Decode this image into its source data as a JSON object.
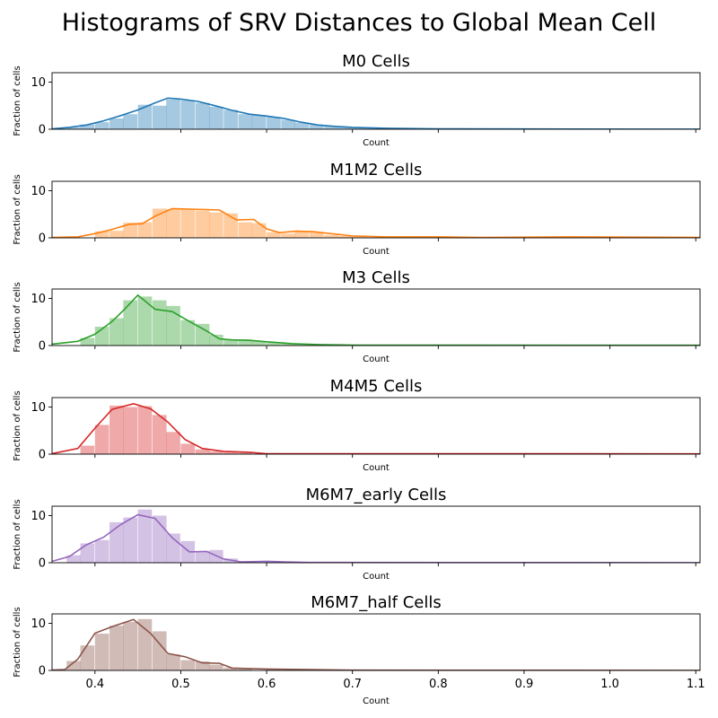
{
  "title": "Histograms of SRV Distances to Global Mean Cell",
  "chart_data": [
    {
      "type": "histogram",
      "title": "M0 Cells",
      "xlabel": "Count",
      "ylabel": "Fraction of cells",
      "color": "#1f77b4",
      "xlim": [
        0.35,
        1.105
      ],
      "ylim": [
        0,
        12
      ],
      "yticks": [
        0,
        10
      ],
      "bin_width": 0.0167,
      "bins": [
        [
          0.35,
          0.2
        ],
        [
          0.367,
          0.4
        ],
        [
          0.383,
          1.0
        ],
        [
          0.4,
          1.5
        ],
        [
          0.417,
          2.3
        ],
        [
          0.433,
          3.2
        ],
        [
          0.45,
          5.2
        ],
        [
          0.467,
          5.0
        ],
        [
          0.483,
          6.3
        ],
        [
          0.5,
          6.1
        ],
        [
          0.517,
          5.6
        ],
        [
          0.533,
          4.8
        ],
        [
          0.55,
          4.1
        ],
        [
          0.567,
          3.2
        ],
        [
          0.583,
          3.0
        ],
        [
          0.6,
          2.6
        ],
        [
          0.617,
          2.0
        ],
        [
          0.633,
          1.4
        ],
        [
          0.65,
          1.0
        ],
        [
          0.667,
          0.6
        ],
        [
          0.683,
          0.4
        ],
        [
          0.7,
          0.3
        ],
        [
          0.717,
          0.2
        ],
        [
          0.733,
          0.2
        ],
        [
          0.75,
          0.1
        ],
        [
          0.767,
          0.1
        ],
        [
          0.783,
          0.1
        ]
      ],
      "kde": [
        [
          0.35,
          0.1
        ],
        [
          0.37,
          0.4
        ],
        [
          0.39,
          0.9
        ],
        [
          0.41,
          1.8
        ],
        [
          0.43,
          2.9
        ],
        [
          0.45,
          4.1
        ],
        [
          0.47,
          5.6
        ],
        [
          0.485,
          6.6
        ],
        [
          0.5,
          6.4
        ],
        [
          0.52,
          5.9
        ],
        [
          0.54,
          5.0
        ],
        [
          0.56,
          4.0
        ],
        [
          0.58,
          3.2
        ],
        [
          0.6,
          2.8
        ],
        [
          0.62,
          2.3
        ],
        [
          0.64,
          1.5
        ],
        [
          0.66,
          0.9
        ],
        [
          0.68,
          0.6
        ],
        [
          0.7,
          0.4
        ],
        [
          0.74,
          0.2
        ],
        [
          0.8,
          0.1
        ],
        [
          0.9,
          0.05
        ],
        [
          1.105,
          0.02
        ]
      ]
    },
    {
      "type": "histogram",
      "title": "M1M2 Cells",
      "xlabel": "Count",
      "ylabel": "Fraction of cells",
      "color": "#ff7f0e",
      "xlim": [
        0.35,
        1.105
      ],
      "ylim": [
        0,
        12
      ],
      "yticks": [
        0,
        10
      ],
      "bin_width": 0.0167,
      "bins": [
        [
          0.4,
          1.4
        ],
        [
          0.417,
          1.5
        ],
        [
          0.433,
          3.2
        ],
        [
          0.45,
          3.3
        ],
        [
          0.467,
          6.2
        ],
        [
          0.483,
          6.1
        ],
        [
          0.5,
          6.0
        ],
        [
          0.517,
          5.8
        ],
        [
          0.533,
          5.4
        ],
        [
          0.55,
          5.2
        ],
        [
          0.567,
          3.3
        ],
        [
          0.583,
          3.1
        ],
        [
          0.6,
          1.2
        ],
        [
          0.617,
          0.9
        ],
        [
          0.633,
          1.3
        ],
        [
          0.65,
          1.2
        ],
        [
          0.667,
          0.6
        ],
        [
          0.683,
          0.4
        ],
        [
          0.7,
          0.2
        ],
        [
          0.75,
          0.2
        ],
        [
          0.8,
          0.2
        ],
        [
          0.9,
          0.1
        ]
      ],
      "kde": [
        [
          0.35,
          0.1
        ],
        [
          0.38,
          0.2
        ],
        [
          0.4,
          0.9
        ],
        [
          0.42,
          1.8
        ],
        [
          0.44,
          2.9
        ],
        [
          0.455,
          3.0
        ],
        [
          0.47,
          4.6
        ],
        [
          0.49,
          6.2
        ],
        [
          0.51,
          6.1
        ],
        [
          0.53,
          6.0
        ],
        [
          0.545,
          5.9
        ],
        [
          0.565,
          3.8
        ],
        [
          0.585,
          3.9
        ],
        [
          0.6,
          1.9
        ],
        [
          0.615,
          1.1
        ],
        [
          0.635,
          1.4
        ],
        [
          0.655,
          1.3
        ],
        [
          0.675,
          0.9
        ],
        [
          0.7,
          0.4
        ],
        [
          0.74,
          0.2
        ],
        [
          0.8,
          0.2
        ],
        [
          0.85,
          0.1
        ],
        [
          0.95,
          0.2
        ],
        [
          1.105,
          0.1
        ]
      ]
    },
    {
      "type": "histogram",
      "title": "M3 Cells",
      "xlabel": "Count",
      "ylabel": "Fraction of cells",
      "color": "#2ca02c",
      "xlim": [
        0.35,
        1.105
      ],
      "ylim": [
        0,
        12
      ],
      "yticks": [
        0,
        10
      ],
      "bin_width": 0.0167,
      "bins": [
        [
          0.383,
          1.6
        ],
        [
          0.4,
          4.0
        ],
        [
          0.417,
          5.8
        ],
        [
          0.433,
          9.6
        ],
        [
          0.45,
          10.4
        ],
        [
          0.467,
          9.6
        ],
        [
          0.483,
          8.4
        ],
        [
          0.5,
          5.4
        ],
        [
          0.517,
          4.6
        ],
        [
          0.533,
          2.3
        ],
        [
          0.55,
          1.3
        ],
        [
          0.567,
          1.3
        ],
        [
          0.583,
          0.9
        ],
        [
          0.6,
          0.6
        ],
        [
          0.617,
          0.5
        ],
        [
          0.633,
          0.3
        ],
        [
          0.65,
          0.2
        ],
        [
          0.7,
          0.2
        ]
      ],
      "kde": [
        [
          0.35,
          0.3
        ],
        [
          0.38,
          0.9
        ],
        [
          0.4,
          2.4
        ],
        [
          0.42,
          5.1
        ],
        [
          0.435,
          7.8
        ],
        [
          0.45,
          10.7
        ],
        [
          0.47,
          7.7
        ],
        [
          0.49,
          7.2
        ],
        [
          0.51,
          5.1
        ],
        [
          0.53,
          3.1
        ],
        [
          0.545,
          1.4
        ],
        [
          0.56,
          1.2
        ],
        [
          0.58,
          1.1
        ],
        [
          0.6,
          0.8
        ],
        [
          0.63,
          0.4
        ],
        [
          0.66,
          0.2
        ],
        [
          0.7,
          0.1
        ],
        [
          1.105,
          0.05
        ]
      ]
    },
    {
      "type": "histogram",
      "title": "M4M5 Cells",
      "xlabel": "Count",
      "ylabel": "Fraction of cells",
      "color": "#d62728",
      "xlim": [
        0.35,
        1.105
      ],
      "ylim": [
        0,
        12
      ],
      "yticks": [
        0,
        10
      ],
      "bin_width": 0.0167,
      "bins": [
        [
          0.383,
          1.8
        ],
        [
          0.4,
          6.2
        ],
        [
          0.417,
          10.3
        ],
        [
          0.433,
          10.0
        ],
        [
          0.45,
          10.2
        ],
        [
          0.467,
          8.3
        ],
        [
          0.483,
          4.7
        ],
        [
          0.5,
          2.2
        ],
        [
          0.517,
          1.0
        ],
        [
          0.533,
          0.6
        ],
        [
          0.55,
          0.5
        ],
        [
          0.567,
          0.3
        ],
        [
          0.6,
          0.2
        ],
        [
          0.65,
          0.1
        ],
        [
          0.8,
          0.1
        ]
      ],
      "kde": [
        [
          0.35,
          0.1
        ],
        [
          0.38,
          1.2
        ],
        [
          0.4,
          5.5
        ],
        [
          0.42,
          9.5
        ],
        [
          0.445,
          10.7
        ],
        [
          0.465,
          9.6
        ],
        [
          0.485,
          6.8
        ],
        [
          0.505,
          3.1
        ],
        [
          0.525,
          1.2
        ],
        [
          0.55,
          0.6
        ],
        [
          0.58,
          0.4
        ],
        [
          0.6,
          0.1
        ],
        [
          0.65,
          0.1
        ],
        [
          0.8,
          0.1
        ],
        [
          1.105,
          0.05
        ]
      ]
    },
    {
      "type": "histogram",
      "title": "M6M7_early Cells",
      "xlabel": "Count",
      "ylabel": "Fraction of cells",
      "color": "#9467bd",
      "xlim": [
        0.35,
        1.105
      ],
      "ylim": [
        0,
        12
      ],
      "yticks": [
        0,
        10
      ],
      "bin_width": 0.0167,
      "bins": [
        [
          0.367,
          1.6
        ],
        [
          0.383,
          4.1
        ],
        [
          0.4,
          4.8
        ],
        [
          0.417,
          8.6
        ],
        [
          0.433,
          9.6
        ],
        [
          0.45,
          11.3
        ],
        [
          0.467,
          10.0
        ],
        [
          0.483,
          6.2
        ],
        [
          0.5,
          4.6
        ],
        [
          0.517,
          2.5
        ],
        [
          0.533,
          2.7
        ],
        [
          0.55,
          0.9
        ],
        [
          0.567,
          0.3
        ],
        [
          0.6,
          0.4
        ]
      ],
      "kde": [
        [
          0.35,
          0.3
        ],
        [
          0.37,
          1.3
        ],
        [
          0.39,
          3.8
        ],
        [
          0.41,
          5.4
        ],
        [
          0.43,
          8.1
        ],
        [
          0.45,
          10.2
        ],
        [
          0.47,
          9.4
        ],
        [
          0.49,
          5.3
        ],
        [
          0.51,
          2.3
        ],
        [
          0.53,
          2.4
        ],
        [
          0.55,
          0.8
        ],
        [
          0.57,
          0.2
        ],
        [
          0.6,
          0.3
        ],
        [
          0.62,
          0.2
        ],
        [
          0.65,
          0.05
        ],
        [
          1.105,
          0.02
        ]
      ]
    },
    {
      "type": "histogram",
      "title": "M6M7_half Cells",
      "xlabel": "Count",
      "ylabel": "Fraction of cells",
      "color": "#8c564b",
      "xlim": [
        0.35,
        1.105
      ],
      "ylim": [
        0,
        12
      ],
      "yticks": [
        0,
        10
      ],
      "xticks": [
        0.4,
        0.5,
        0.6,
        0.7,
        0.8,
        0.9,
        1.0,
        1.1
      ],
      "bin_width": 0.0167,
      "bins": [
        [
          0.367,
          2.0
        ],
        [
          0.383,
          5.3
        ],
        [
          0.4,
          7.8
        ],
        [
          0.417,
          9.5
        ],
        [
          0.433,
          10.3
        ],
        [
          0.45,
          10.9
        ],
        [
          0.467,
          8.3
        ],
        [
          0.483,
          3.4
        ],
        [
          0.5,
          2.2
        ],
        [
          0.517,
          1.9
        ],
        [
          0.533,
          1.2
        ],
        [
          0.55,
          0.6
        ],
        [
          0.567,
          0.4
        ],
        [
          0.6,
          0.3
        ],
        [
          0.65,
          0.1
        ]
      ],
      "kde": [
        [
          0.35,
          0.1
        ],
        [
          0.365,
          0.2
        ],
        [
          0.38,
          2.4
        ],
        [
          0.4,
          7.9
        ],
        [
          0.42,
          9.3
        ],
        [
          0.445,
          10.8
        ],
        [
          0.465,
          7.8
        ],
        [
          0.485,
          3.6
        ],
        [
          0.505,
          2.9
        ],
        [
          0.525,
          1.6
        ],
        [
          0.545,
          1.5
        ],
        [
          0.56,
          0.5
        ],
        [
          0.6,
          0.3
        ],
        [
          0.65,
          0.2
        ],
        [
          0.7,
          0.05
        ],
        [
          1.105,
          0.02
        ]
      ]
    }
  ]
}
